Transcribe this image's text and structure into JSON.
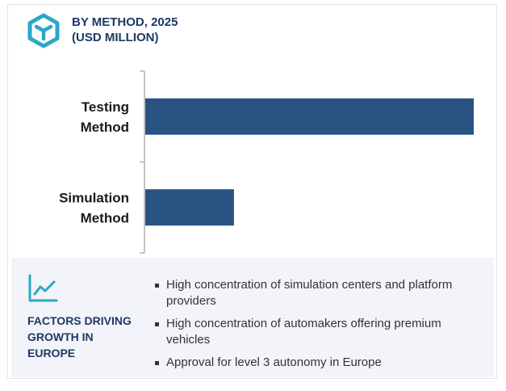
{
  "header": {
    "title_line1": "BY METHOD, 2025",
    "title_line2": "(USD MILLION)",
    "icon": "cube-icon"
  },
  "colors": {
    "bar": "#285383",
    "title": "#1f3864",
    "icon": "#2aa7c9",
    "panel": "#f2f4f9"
  },
  "chart_data": {
    "type": "bar",
    "orientation": "horizontal",
    "categories": [
      [
        "Testing",
        "Method"
      ],
      [
        "Simulation",
        "Method"
      ]
    ],
    "values": [
      100,
      27
    ],
    "title": "BY METHOD, 2025",
    "ylabel": "",
    "xlabel": "",
    "unit": "(USD MILLION)",
    "xlim": [
      0,
      100
    ],
    "grid": false,
    "legend": "none"
  },
  "factors": {
    "icon": "trend-chart-icon",
    "title": "FACTORS DRIVING GROWTH IN EUROPE",
    "items": [
      "High concentration of simulation centers and platform providers",
      "High concentration of automakers offering premium vehicles",
      "Approval for level 3 autonomy in Europe"
    ]
  }
}
